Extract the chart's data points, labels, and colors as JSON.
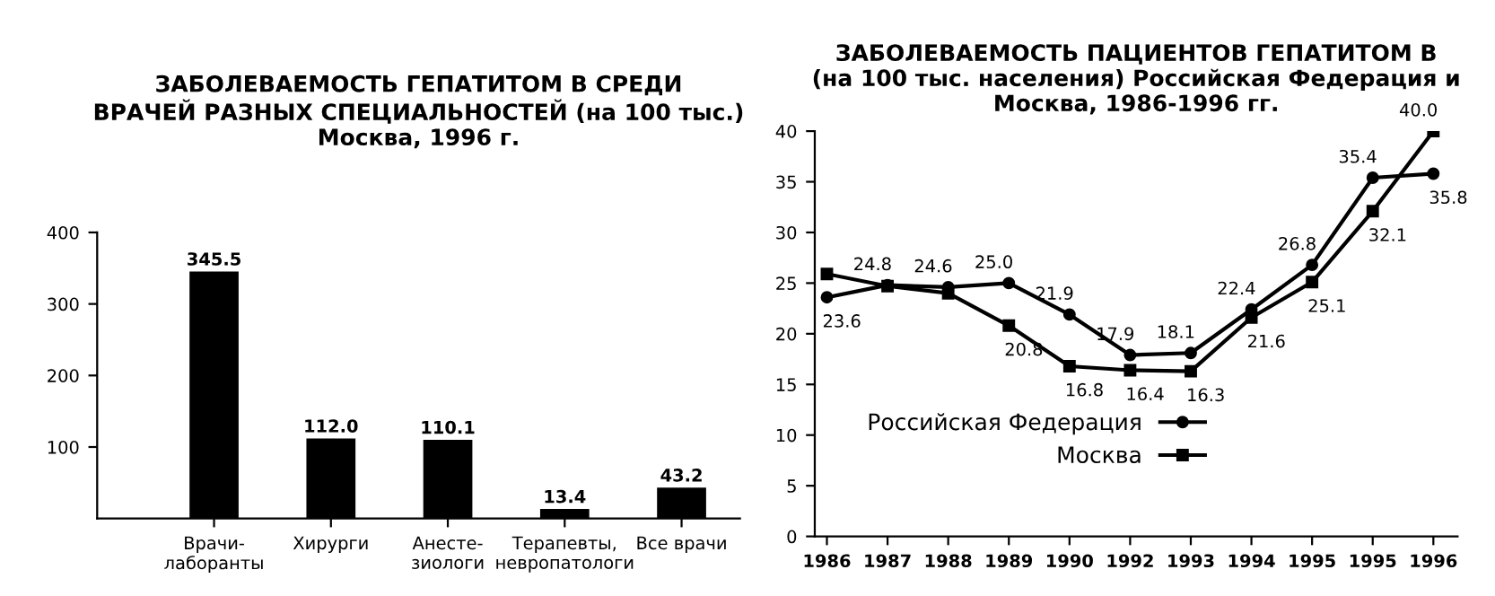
{
  "chart_data": [
    {
      "type": "bar",
      "title": "ЗАБОЛЕВАЕМОСТЬ ГЕПАТИТОМ В СРЕДИ\nВРАЧЕЙ РАЗНЫХ СПЕЦИАЛЬНОСТЕЙ (на 100 тыс.)\nМосква, 1996 г.",
      "categories": [
        "Врачи-\nлаборанты",
        "Хирурги",
        "Анесте-\nзиологи",
        "Терапевты,\nневропатологи",
        "Все врачи"
      ],
      "values": [
        345.5,
        112.0,
        110.1,
        13.4,
        43.2
      ],
      "color": "#000000",
      "value_labels": [
        "345.5",
        "112.0",
        "110.1",
        "13.4",
        "43.2"
      ],
      "ylim": [
        0,
        400
      ],
      "yticks": [
        100,
        200,
        300,
        400
      ],
      "grid": false
    },
    {
      "type": "line",
      "title": "ЗАБОЛЕВАЕМОСТЬ ПАЦИЕНТОВ ГЕПАТИТОМ В\n(на 100 тыс. населения) Российская Федерация и\nМосква, 1986-1996 гг.",
      "categories": [
        "1986",
        "1987",
        "1988",
        "1989",
        "1990",
        "1992",
        "1993",
        "1994",
        "1995",
        "1995",
        "1996"
      ],
      "series": [
        {
          "name": "Российская Федерация",
          "color": "#000000",
          "marker": "circle",
          "values": [
            23.6,
            24.8,
            24.6,
            25.0,
            21.9,
            17.9,
            18.1,
            22.4,
            26.8,
            35.4,
            35.8
          ],
          "value_labels": [
            "23.6",
            "24.8",
            "24.6",
            "25.0",
            "21.9",
            "17.9",
            "18.1",
            "22.4",
            "26.8",
            "35.4",
            "35.8"
          ]
        },
        {
          "name": "Москва",
          "color": "#000000",
          "marker": "square",
          "values": [
            25.9,
            24.7,
            24.0,
            20.8,
            16.8,
            16.4,
            16.3,
            21.6,
            25.1,
            32.1,
            40.0
          ],
          "value_labels": [
            null,
            null,
            null,
            "20.8",
            "16.8",
            "16.4",
            "16.3",
            "21.6",
            "25.1",
            "32.1",
            "40.0"
          ]
        }
      ],
      "ylim": [
        0,
        40
      ],
      "yticks": [
        0,
        5,
        10,
        15,
        20,
        25,
        30,
        35,
        40
      ],
      "grid": false,
      "legend": "bottom left",
      "line_style": "solid"
    }
  ]
}
